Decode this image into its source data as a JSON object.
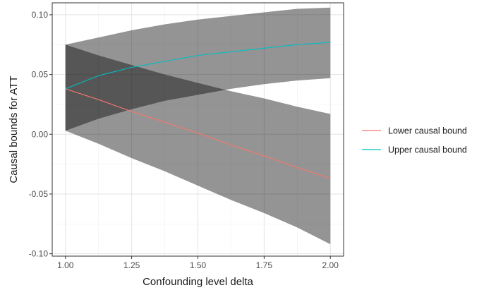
{
  "chart_data": {
    "type": "line",
    "xlabel": "Confounding level delta",
    "ylabel": "Causal bounds for ATT",
    "xlim": [
      0.95,
      2.05
    ],
    "ylim": [
      -0.102,
      0.11
    ],
    "x_ticks": [
      1.0,
      1.25,
      1.5,
      1.75,
      2.0
    ],
    "x_tick_labels": [
      "1.00",
      "1.25",
      "1.50",
      "1.75",
      "2.00"
    ],
    "y_ticks": [
      -0.1,
      -0.05,
      0.0,
      0.05,
      0.1
    ],
    "y_tick_labels": [
      "-0.10",
      "-0.05",
      "0.00",
      "0.05",
      "0.10"
    ],
    "grid": true,
    "legend_position": "right",
    "x": [
      1.0,
      1.125,
      1.25,
      1.375,
      1.5,
      1.625,
      1.75,
      1.875,
      2.0
    ],
    "series": [
      {
        "name": "Lower causal bound",
        "color": "#F8766D",
        "values": [
          0.038,
          0.029,
          0.019,
          0.01,
          0.001,
          -0.009,
          -0.018,
          -0.028,
          -0.037
        ],
        "band_low": [
          0.003,
          -0.008,
          -0.02,
          -0.031,
          -0.043,
          -0.055,
          -0.066,
          -0.078,
          -0.092
        ],
        "band_high": [
          0.075,
          0.066,
          0.058,
          0.05,
          0.043,
          0.036,
          0.03,
          0.023,
          0.017
        ]
      },
      {
        "name": "Upper causal bound",
        "color": "#00BFC4",
        "values": [
          0.038,
          0.049,
          0.056,
          0.061,
          0.066,
          0.069,
          0.072,
          0.075,
          0.077
        ],
        "band_low": [
          0.003,
          0.013,
          0.021,
          0.028,
          0.033,
          0.038,
          0.042,
          0.045,
          0.047
        ],
        "band_high": [
          0.075,
          0.081,
          0.087,
          0.092,
          0.096,
          0.099,
          0.102,
          0.105,
          0.106
        ]
      }
    ]
  }
}
